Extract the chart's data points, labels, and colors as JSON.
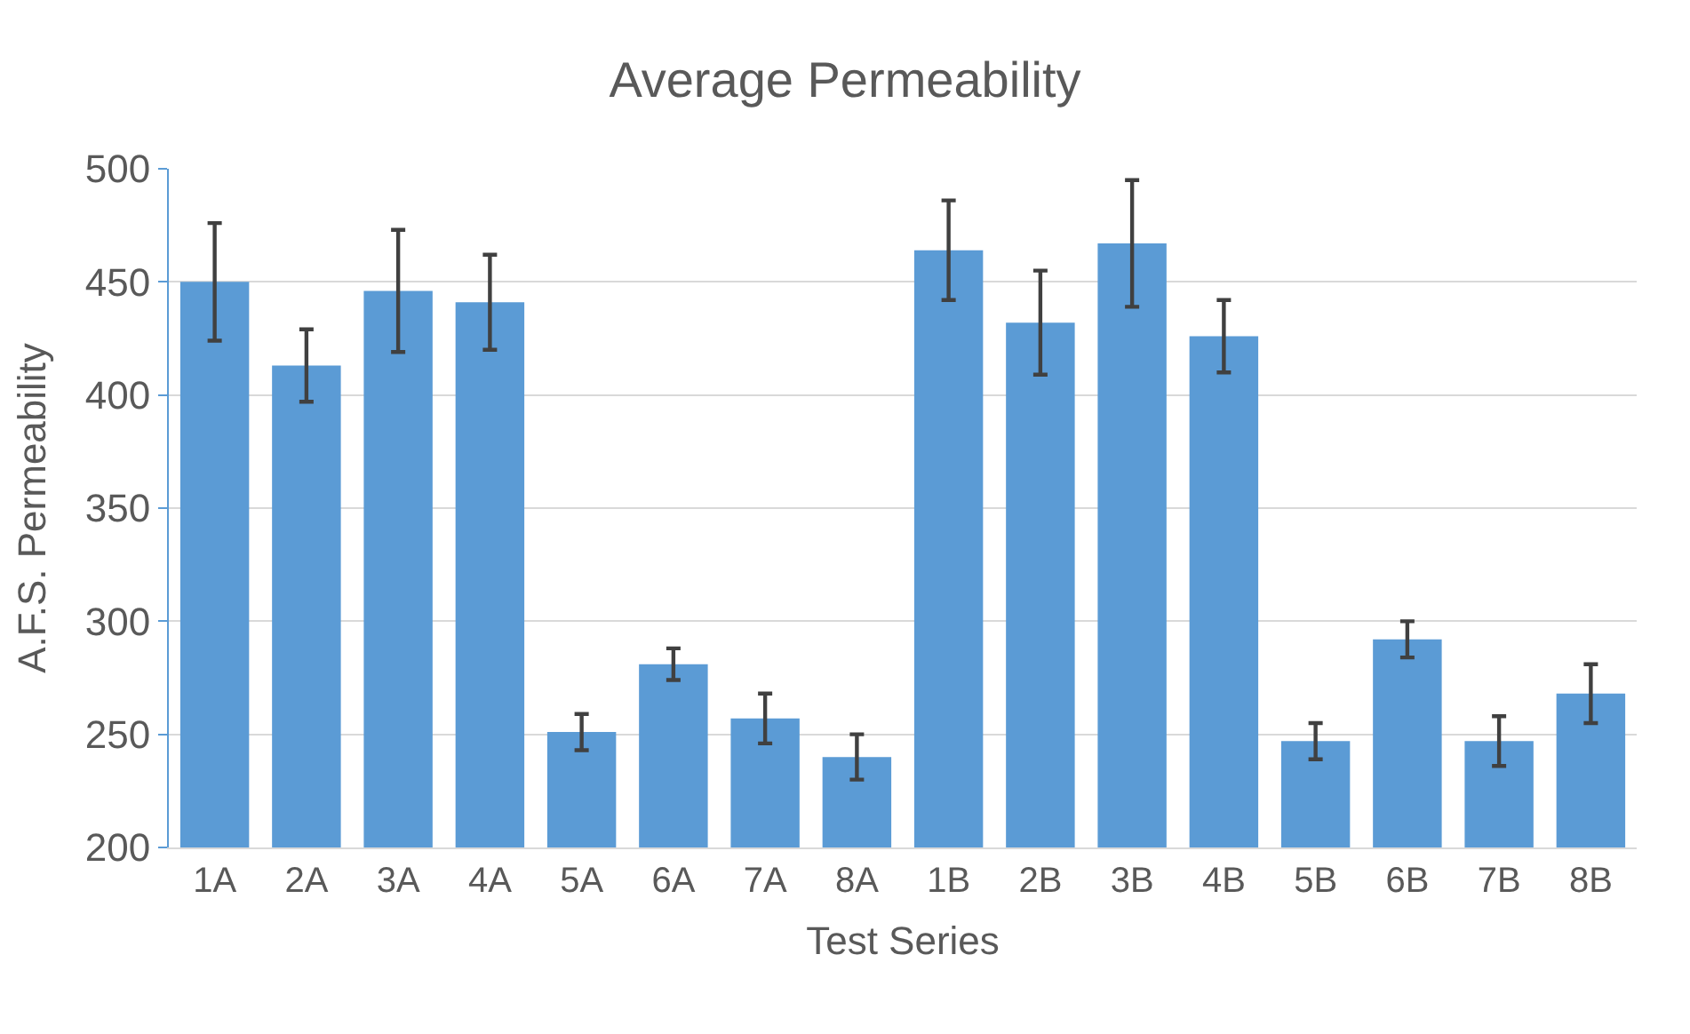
{
  "chart_data": {
    "type": "bar",
    "title": "Average Permeability",
    "xlabel": "Test Series",
    "ylabel": "A.F.S. Permeability",
    "categories": [
      "1A",
      "2A",
      "3A",
      "4A",
      "5A",
      "6A",
      "7A",
      "8A",
      "1B",
      "2B",
      "3B",
      "4B",
      "5B",
      "6B",
      "7B",
      "8B"
    ],
    "values": [
      450,
      413,
      446,
      441,
      251,
      281,
      257,
      240,
      464,
      432,
      467,
      426,
      247,
      292,
      247,
      268
    ],
    "errors": [
      26,
      16,
      27,
      21,
      8,
      7,
      11,
      10,
      22,
      23,
      28,
      16,
      8,
      8,
      11,
      13
    ],
    "color": "#5b9bd5",
    "ylim": [
      200,
      500
    ],
    "yticks": [
      200,
      250,
      300,
      350,
      400,
      450,
      500
    ],
    "grid": "y"
  }
}
